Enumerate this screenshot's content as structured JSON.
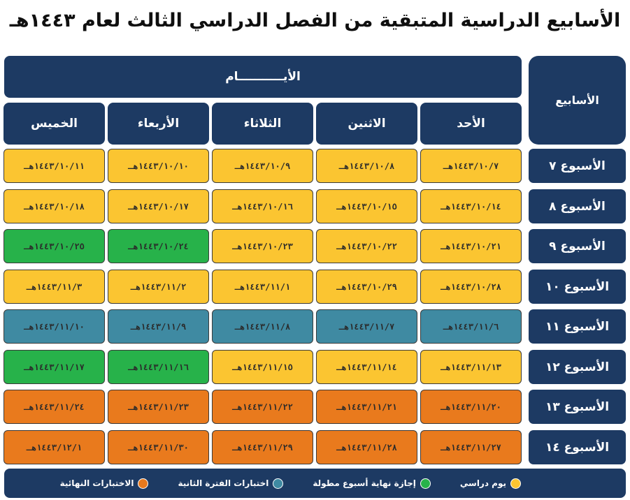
{
  "title": "الأسابيع الدراسية المتبقية من الفصل الدراسي الثالث لعام ١٤٤٣هـ",
  "header": {
    "days_title": "الأيـــــــــــام",
    "weeks_title": "الأسابيع",
    "days": [
      "الأحد",
      "الاثنين",
      "الثلاثاء",
      "الأربعاء",
      "الخميس"
    ]
  },
  "colors": {
    "study": "#fbc531",
    "holiday": "#27b24a",
    "exams_period2": "#3f8aa2",
    "final_exams": "#e97a1d",
    "navy": "#1d3a63"
  },
  "weeks": [
    {
      "label": "الأسبوع ٧",
      "cells": [
        {
          "text": "١٤٤٣/١٠/٧هـ",
          "status": "study"
        },
        {
          "text": "١٤٤٣/١٠/٨هـ",
          "status": "study"
        },
        {
          "text": "١٤٤٣/١٠/٩هـ",
          "status": "study"
        },
        {
          "text": "١٤٤٣/١٠/١٠هـ",
          "status": "study"
        },
        {
          "text": "١٤٤٣/١٠/١١هـ",
          "status": "study"
        }
      ]
    },
    {
      "label": "الأسبوع ٨",
      "cells": [
        {
          "text": "١٤٤٣/١٠/١٤هـ",
          "status": "study"
        },
        {
          "text": "١٤٤٣/١٠/١٥هـ",
          "status": "study"
        },
        {
          "text": "١٤٤٣/١٠/١٦هـ",
          "status": "study"
        },
        {
          "text": "١٤٤٣/١٠/١٧هـ",
          "status": "study"
        },
        {
          "text": "١٤٤٣/١٠/١٨هـ",
          "status": "study"
        }
      ]
    },
    {
      "label": "الأسبوع ٩",
      "cells": [
        {
          "text": "١٤٤٣/١٠/٢١هـ",
          "status": "study"
        },
        {
          "text": "١٤٤٣/١٠/٢٢هـ",
          "status": "study"
        },
        {
          "text": "١٤٤٣/١٠/٢٣هـ",
          "status": "study"
        },
        {
          "text": "١٤٤٣/١٠/٢٤هـ",
          "status": "holiday"
        },
        {
          "text": "١٤٤٣/١٠/٢٥هـ",
          "status": "holiday"
        }
      ]
    },
    {
      "label": "الأسبوع ١٠",
      "cells": [
        {
          "text": "١٤٤٣/١٠/٢٨هـ",
          "status": "study"
        },
        {
          "text": "١٤٤٣/١٠/٢٩هـ",
          "status": "study"
        },
        {
          "text": "١٤٤٣/١١/١هـ",
          "status": "study"
        },
        {
          "text": "١٤٤٣/١١/٢هـ",
          "status": "study"
        },
        {
          "text": "١٤٤٣/١١/٣هـ",
          "status": "study"
        }
      ]
    },
    {
      "label": "الأسبوع ١١",
      "cells": [
        {
          "text": "١٤٤٣/١١/٦هـ",
          "status": "exams_period2"
        },
        {
          "text": "١٤٤٣/١١/٧هـ",
          "status": "exams_period2"
        },
        {
          "text": "١٤٤٣/١١/٨هـ",
          "status": "exams_period2"
        },
        {
          "text": "١٤٤٣/١١/٩هـ",
          "status": "exams_period2"
        },
        {
          "text": "١٤٤٣/١١/١٠هـ",
          "status": "exams_period2"
        }
      ]
    },
    {
      "label": "الأسبوع ١٢",
      "cells": [
        {
          "text": "١٤٤٣/١١/١٣هـ",
          "status": "study"
        },
        {
          "text": "١٤٤٣/١١/١٤هـ",
          "status": "study"
        },
        {
          "text": "١٤٤٣/١١/١٥هـ",
          "status": "study"
        },
        {
          "text": "١٤٤٣/١١/١٦هـ",
          "status": "holiday"
        },
        {
          "text": "١٤٤٣/١١/١٧هـ",
          "status": "holiday"
        }
      ]
    },
    {
      "label": "الأسبوع ١٣",
      "cells": [
        {
          "text": "١٤٤٣/١١/٢٠هـ",
          "status": "final_exams"
        },
        {
          "text": "١٤٤٣/١١/٢١هـ",
          "status": "final_exams"
        },
        {
          "text": "١٤٤٣/١١/٢٢هـ",
          "status": "final_exams"
        },
        {
          "text": "١٤٤٣/١١/٢٣هـ",
          "status": "final_exams"
        },
        {
          "text": "١٤٤٣/١١/٢٤هـ",
          "status": "final_exams"
        }
      ]
    },
    {
      "label": "الأسبوع ١٤",
      "cells": [
        {
          "text": "١٤٤٣/١١/٢٧هـ",
          "status": "final_exams"
        },
        {
          "text": "١٤٤٣/١١/٢٨هـ",
          "status": "final_exams"
        },
        {
          "text": "١٤٤٣/١١/٢٩هـ",
          "status": "final_exams"
        },
        {
          "text": "١٤٤٣/١١/٣٠هـ",
          "status": "final_exams"
        },
        {
          "text": "١٤٤٣/١٢/١هـ",
          "status": "final_exams"
        }
      ]
    }
  ],
  "legend": [
    {
      "label": "يوم دراسي",
      "color_key": "study"
    },
    {
      "label": "إجازة نهاية أسبوع مطولة",
      "color_key": "holiday"
    },
    {
      "label": "اختبارات الفترة الثانية",
      "color_key": "exams_period2"
    },
    {
      "label": "الاختبارات النهائية",
      "color_key": "final_exams"
    }
  ]
}
